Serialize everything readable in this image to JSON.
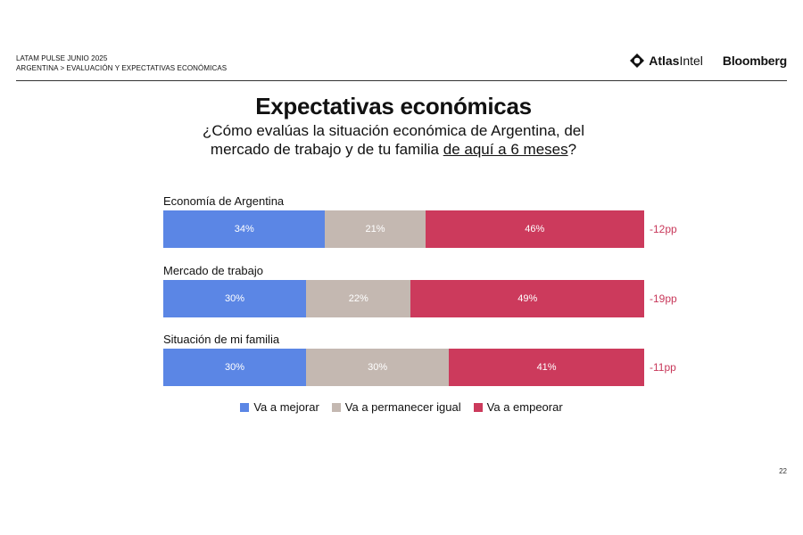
{
  "header": {
    "line1": "LATAM PULSE JUNIO 2025",
    "line2": "ARGENTINA > EVALUACIÓN Y EXPECTATIVAS ECONÓMICAS",
    "logo_atlas_bold": "Atlas",
    "logo_atlas_rest": "Intel",
    "logo_bloomberg": "Bloomberg"
  },
  "title": "Expectativas económicas",
  "subtitle": {
    "line1": "¿Cómo evalúas la situación económica de Argentina, del",
    "line2_pre": "mercado de trabajo y de tu familia ",
    "line2_ul": "de aquí a 6 meses",
    "line2_post": "?"
  },
  "colors": {
    "mejorar": "#5b86e5",
    "igual": "#c4b8b1",
    "empeorar": "#cc3a5c",
    "delta": "#c8385a"
  },
  "chart_data": {
    "type": "bar",
    "orientation": "horizontal-stacked-100",
    "categories": [
      "Economía de Argentina",
      "Mercado de trabajo",
      "Situación de mi familia"
    ],
    "series": [
      {
        "name": "Va a mejorar",
        "values": [
          34,
          30,
          30
        ]
      },
      {
        "name": "Va a permanecer igual",
        "values": [
          21,
          22,
          30
        ]
      },
      {
        "name": "Va a empeorar",
        "values": [
          46,
          49,
          41
        ]
      }
    ],
    "data_labels": [
      [
        "34%",
        "21%",
        "46%"
      ],
      [
        "30%",
        "22%",
        "49%"
      ],
      [
        "30%",
        "30%",
        "41%"
      ]
    ],
    "net": [
      "-12pp",
      "-19pp",
      "-11pp"
    ],
    "legend": [
      "Va a mejorar",
      "Va a permanecer igual",
      "Va a empeorar"
    ],
    "legend_position": "bottom"
  },
  "page_number": "22"
}
